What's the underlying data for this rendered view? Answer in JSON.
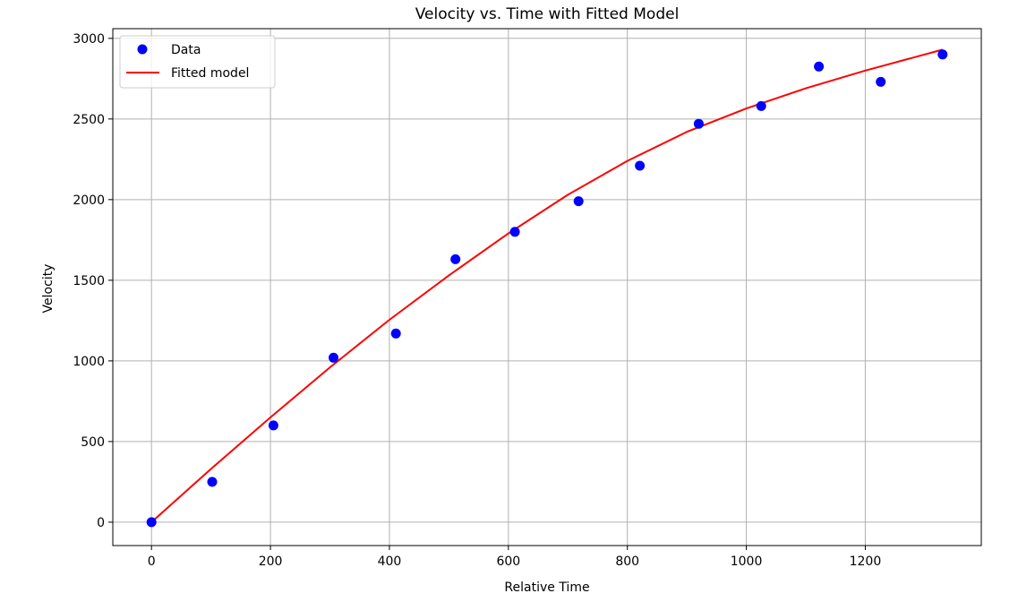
{
  "chart_data": {
    "type": "scatter",
    "title": "Velocity vs. Time with Fitted Model",
    "xlabel": "Relative Time",
    "ylabel": "Velocity",
    "xlim": [
      -65,
      1395
    ],
    "ylim": [
      -145,
      3060
    ],
    "xticks": [
      0,
      200,
      400,
      600,
      800,
      1000,
      1200
    ],
    "yticks": [
      0,
      500,
      1000,
      1500,
      2000,
      2500,
      3000
    ],
    "grid": true,
    "legend_position": "top-left",
    "series": [
      {
        "name": "Data",
        "kind": "scatter",
        "color": "#0000ff",
        "x": [
          0,
          102,
          205,
          306,
          411,
          511,
          611,
          718,
          821,
          920,
          1025,
          1122,
          1226,
          1330
        ],
        "y": [
          0,
          250,
          600,
          1020,
          1170,
          1630,
          1800,
          1990,
          2210,
          2470,
          2580,
          2825,
          2730,
          2900
        ]
      },
      {
        "name": "Fitted model",
        "kind": "line",
        "color": "#ff0000",
        "x": [
          0,
          100,
          200,
          300,
          400,
          500,
          600,
          700,
          800,
          900,
          1000,
          1100,
          1200,
          1330
        ],
        "y": [
          0,
          330,
          650,
          960,
          1255,
          1530,
          1790,
          2030,
          2240,
          2420,
          2565,
          2690,
          2800,
          2930
        ]
      }
    ]
  }
}
